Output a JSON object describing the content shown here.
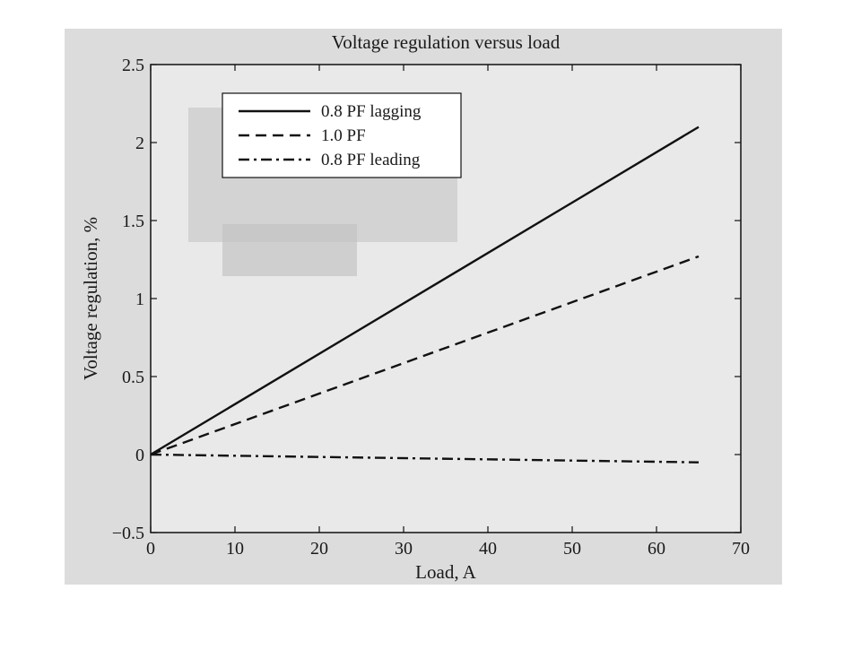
{
  "chart_data": {
    "type": "line",
    "title": "Voltage regulation versus load",
    "xlabel": "Load, A",
    "ylabel": "Voltage regulation, %",
    "xlim": [
      0,
      70
    ],
    "ylim": [
      -0.5,
      2.5
    ],
    "xticks": [
      0,
      10,
      20,
      30,
      40,
      50,
      60,
      70
    ],
    "yticks": [
      -0.5,
      0,
      0.5,
      1,
      1.5,
      2,
      2.5
    ],
    "ytick_labels": [
      "−0.5",
      "0",
      "0.5",
      "1",
      "1.5",
      "2",
      "2.5"
    ],
    "grid": false,
    "legend_position": "top-left",
    "series": [
      {
        "name": "0.8 PF lagging",
        "style": "solid",
        "x": [
          0,
          65
        ],
        "y": [
          0,
          2.1
        ]
      },
      {
        "name": "1.0 PF",
        "style": "dashed",
        "x": [
          0,
          65
        ],
        "y": [
          0,
          1.27
        ]
      },
      {
        "name": "0.8 PF leading",
        "style": "dashdot",
        "x": [
          0,
          65
        ],
        "y": [
          0,
          -0.05
        ]
      }
    ],
    "colors": {
      "plot_background": "#e9e9e9",
      "line": "#111111"
    }
  }
}
